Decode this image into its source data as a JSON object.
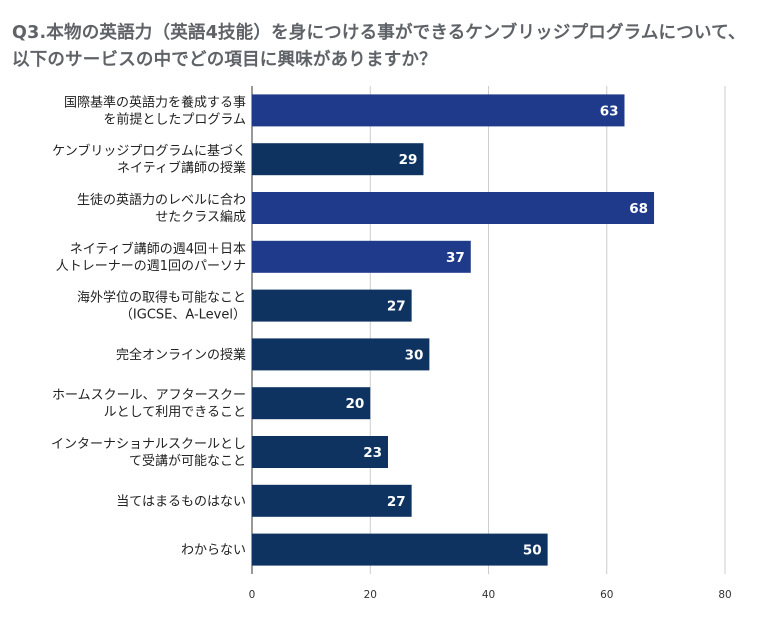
{
  "chart_data": {
    "type": "bar",
    "orientation": "horizontal",
    "title": "Q3.本物の英語力（英語4技能）を身につける事ができるケンブリッジプログラムについて、以下のサービスの中でどの項目に興味がありますか？",
    "categories": [
      [
        "国際基準の英語力を養成する事",
        "を前提としたプログラム"
      ],
      [
        "ケンブリッジプログラムに基づく",
        "ネイティブ講師の授業"
      ],
      [
        "生徒の英語力のレベルに合わ",
        "せたクラス編成"
      ],
      [
        "ネイティブ講師の週4回＋日本",
        "人トレーナーの週1回のパーソナ"
      ],
      [
        "海外学位の取得も可能なこと",
        "（IGCSE、A-Level）"
      ],
      [
        "完全オンラインの授業"
      ],
      [
        "ホームスクール、アフタースクー",
        "ルとして利用できること"
      ],
      [
        "インターナショナルスクールとし",
        "て受講が可能なこと"
      ],
      [
        "当てはまるものはない"
      ],
      [
        "わからない"
      ]
    ],
    "values": [
      63,
      29,
      68,
      37,
      27,
      30,
      20,
      23,
      27,
      50
    ],
    "bar_colors": [
      "#1f3a8a",
      "#0f3360",
      "#1f3a8a",
      "#1f3a8a",
      "#0f3360",
      "#0f3360",
      "#0f3360",
      "#0f3360",
      "#0f3360",
      "#0f3360"
    ],
    "xlim": [
      0,
      80
    ],
    "xticks": [
      0,
      20,
      40,
      60,
      80
    ],
    "grid": true,
    "xlabel": "",
    "ylabel": ""
  }
}
